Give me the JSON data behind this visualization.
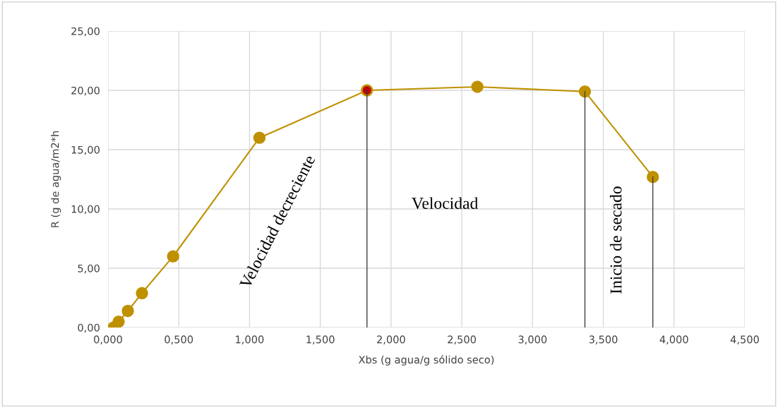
{
  "chart_data": {
    "type": "line",
    "xlabel": "Xbs (g agua/g sólido seco)",
    "ylabel": "R (g de agua/m2*h",
    "x": [
      0.04,
      0.075,
      0.14,
      0.24,
      0.46,
      1.07,
      1.83,
      2.61,
      3.37,
      3.85
    ],
    "series": [
      {
        "color": "#bf9000",
        "values": [
          0.0,
          0.5,
          1.4,
          2.9,
          6.0,
          16.0,
          20.0,
          20.3,
          19.9,
          12.7
        ],
        "colors": [
          "#bf9000",
          "#bf9000",
          "#bf9000",
          "#bf9000",
          "#bf9000",
          "#bf9000",
          "#c00000",
          "#bf9000",
          "#bf9000",
          "#bf9000"
        ],
        "marker": "circle"
      },
      {
        "type": "line",
        "color": "#404040",
        "x": [
          1.83,
          1.83
        ],
        "values": [
          0.0,
          20.0
        ],
        "marker": "none"
      },
      {
        "type": "line",
        "color": "#404040",
        "x": [
          3.37,
          3.37
        ],
        "values": [
          0.0,
          19.9
        ],
        "marker": "none"
      },
      {
        "type": "line",
        "color": "#404040",
        "x": [
          3.85,
          3.85
        ],
        "values": [
          0.0,
          12.7
        ],
        "marker": "none"
      }
    ],
    "xlim": [
      0,
      4.5
    ],
    "ylim": [
      0,
      25
    ],
    "xticks": [
      {
        "value": 0,
        "label": "0,000"
      },
      {
        "value": 0.5,
        "label": "0,500"
      },
      {
        "value": 1,
        "label": "1,000"
      },
      {
        "value": 1.5,
        "label": "1,500"
      },
      {
        "value": 2,
        "label": "2,000"
      },
      {
        "value": 2.5,
        "label": "2,500"
      },
      {
        "value": 3,
        "label": "3,000"
      },
      {
        "value": 3.5,
        "label": "3,500"
      },
      {
        "value": 4,
        "label": "4,000"
      },
      {
        "value": 4.5,
        "label": "4,500"
      }
    ],
    "yticks": [
      {
        "value": 0,
        "label": "0,00"
      },
      {
        "value": 5,
        "label": "5,00"
      },
      {
        "value": 10,
        "label": "10,00"
      },
      {
        "value": 15,
        "label": "15,00"
      },
      {
        "value": 20,
        "label": "20,00"
      },
      {
        "value": 25,
        "label": "25,00"
      }
    ],
    "grid": true,
    "annotations": [
      "Velocidad decreciente",
      "Velocidad",
      "Inicio de secado"
    ]
  }
}
